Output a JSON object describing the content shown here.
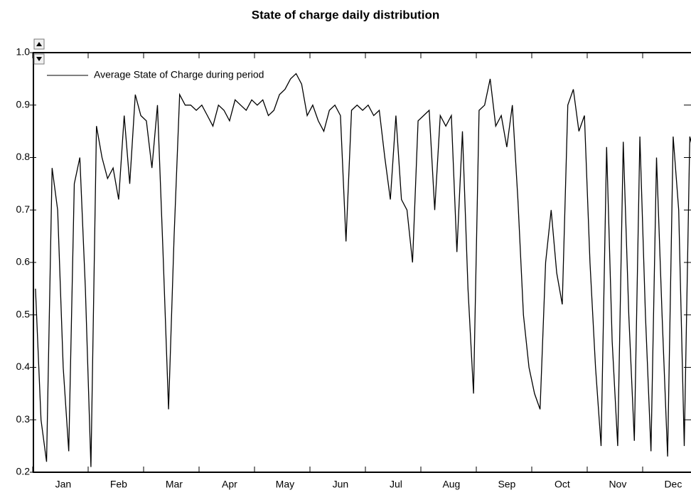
{
  "chart_data": {
    "type": "line",
    "title": "State of charge daily distribution",
    "categories": [
      null,
      null,
      null,
      null,
      null,
      "Jan",
      null,
      null,
      null,
      null,
      null,
      null,
      null,
      null,
      null,
      "Feb",
      null,
      null,
      null,
      null,
      null,
      null,
      null,
      null,
      null,
      "Mar",
      null,
      null,
      null,
      null,
      null,
      null,
      null,
      null,
      null,
      "Apr",
      null,
      null,
      null,
      null,
      null,
      null,
      null,
      null,
      null,
      "May",
      null,
      null,
      null,
      null,
      null,
      null,
      null,
      null,
      null,
      "Jun",
      null,
      null,
      null,
      null,
      null,
      null,
      null,
      null,
      null,
      "Jul",
      null,
      null,
      null,
      null,
      null,
      null,
      null,
      null,
      null,
      "Aug",
      null,
      null,
      null,
      null,
      null,
      null,
      null,
      null,
      null,
      "Sep",
      null,
      null,
      null,
      null,
      null,
      null,
      null,
      null,
      null,
      "Oct",
      null,
      null,
      null,
      null,
      null,
      null,
      null,
      null,
      null,
      "Nov",
      null,
      null,
      null,
      null,
      null,
      null,
      null,
      null,
      null,
      "Dec",
      null,
      null,
      null,
      null
    ],
    "series": [
      {
        "name": "Average State of Charge during period",
        "color": "#000000",
        "values": [
          0.55,
          0.3,
          0.22,
          0.78,
          0.7,
          0.4,
          0.24,
          0.75,
          0.8,
          0.55,
          0.21,
          0.86,
          0.8,
          0.76,
          0.78,
          0.72,
          0.88,
          0.75,
          0.92,
          0.88,
          0.87,
          0.78,
          0.9,
          0.62,
          0.32,
          0.65,
          0.92,
          0.9,
          0.9,
          0.89,
          0.9,
          0.88,
          0.86,
          0.9,
          0.89,
          0.87,
          0.91,
          0.9,
          0.89,
          0.91,
          0.9,
          0.91,
          0.88,
          0.89,
          0.92,
          0.93,
          0.95,
          0.96,
          0.94,
          0.88,
          0.9,
          0.87,
          0.85,
          0.89,
          0.9,
          0.88,
          0.64,
          0.89,
          0.9,
          0.89,
          0.9,
          0.88,
          0.89,
          0.8,
          0.72,
          0.88,
          0.72,
          0.7,
          0.6,
          0.87,
          0.88,
          0.89,
          0.7,
          0.88,
          0.86,
          0.88,
          0.62,
          0.85,
          0.55,
          0.35,
          0.89,
          0.9,
          0.95,
          0.86,
          0.88,
          0.82,
          0.9,
          0.72,
          0.5,
          0.4,
          0.35,
          0.32,
          0.6,
          0.7,
          0.58,
          0.52,
          0.9,
          0.93,
          0.85,
          0.88,
          0.6,
          0.4,
          0.25,
          0.82,
          0.45,
          0.25,
          0.83,
          0.5,
          0.26,
          0.84,
          0.5,
          0.24,
          0.8,
          0.5,
          0.23,
          0.84,
          0.7,
          0.25,
          0.84,
          0.8
        ]
      }
    ],
    "ylim": [
      0.2,
      1.0
    ],
    "yticks": [
      0.2,
      0.3,
      0.4,
      0.5,
      0.6,
      0.7,
      0.8,
      0.9,
      {
        "value": 1,
        "label": "1.0"
      }
    ]
  }
}
